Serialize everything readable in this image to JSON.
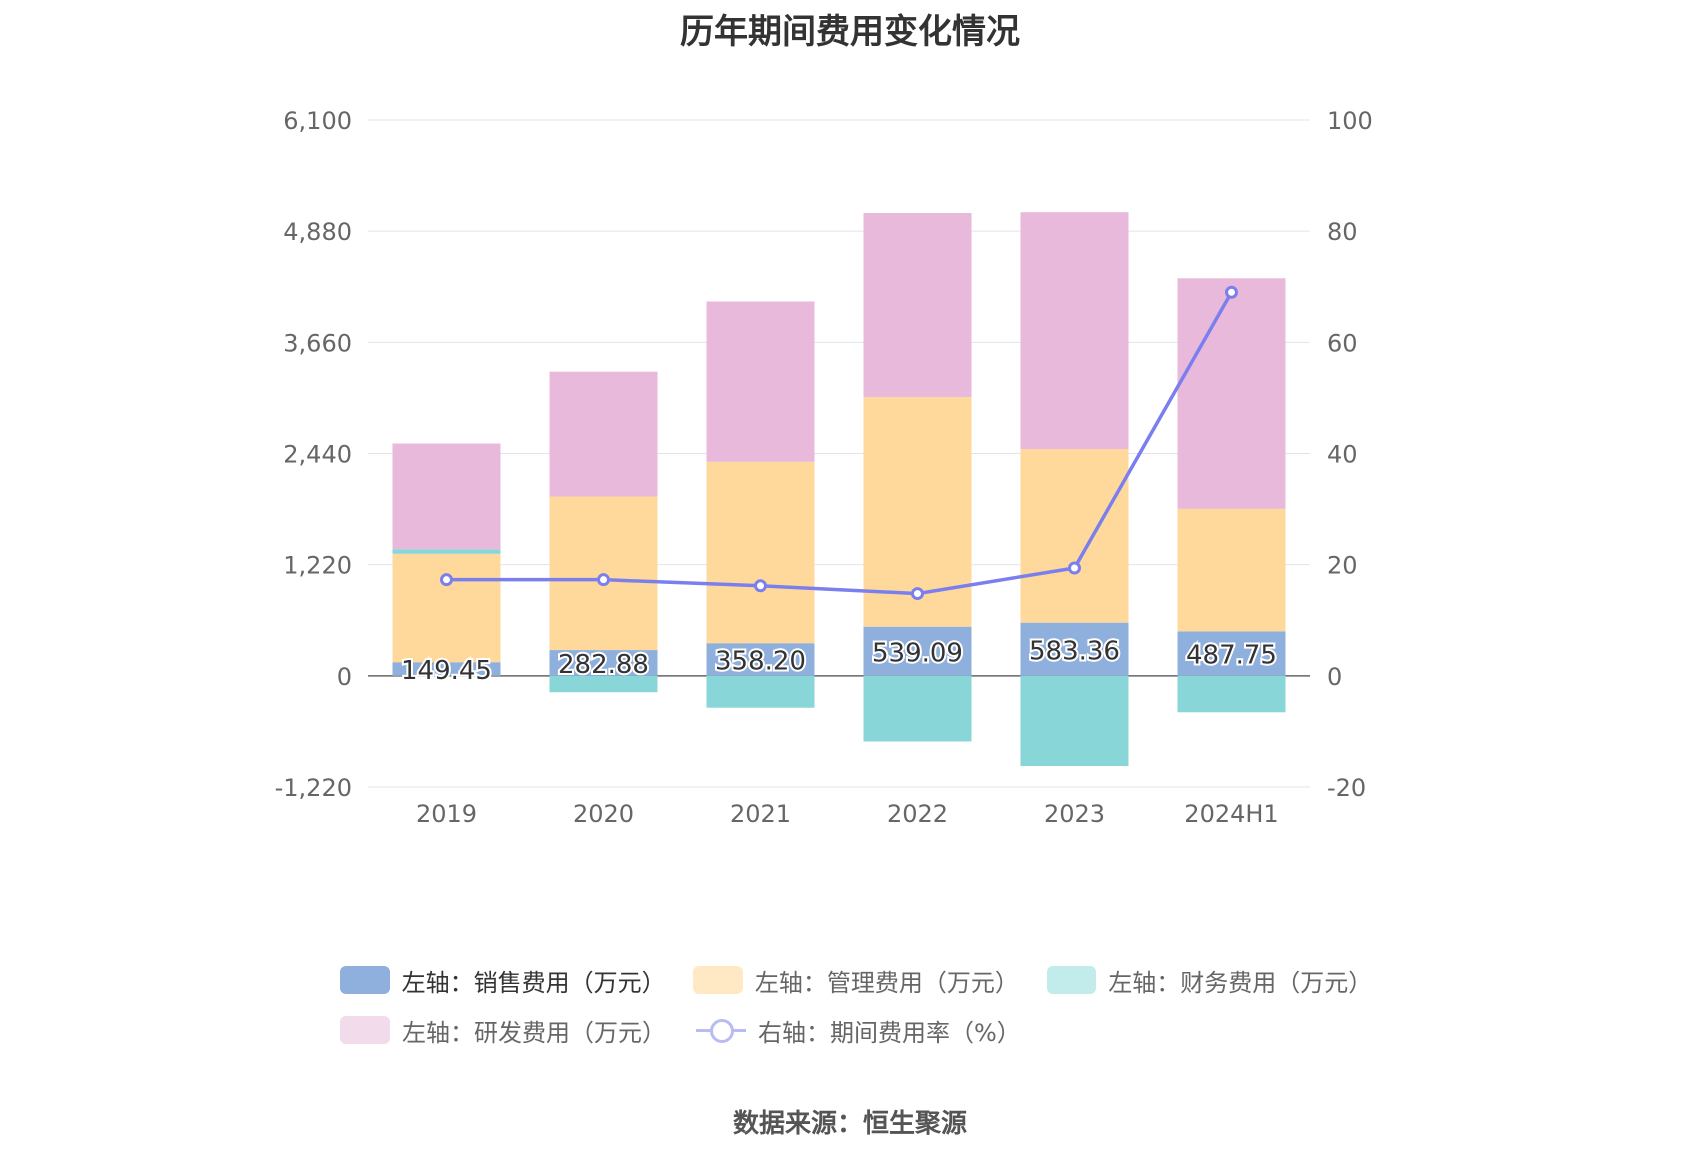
{
  "chart_data": {
    "type": "bar",
    "title": "历年期间费用变化情况",
    "categories": [
      "2019",
      "2020",
      "2021",
      "2022",
      "2023",
      "2024H1"
    ],
    "stacked": true,
    "y_left": {
      "min": -1220,
      "max": 6100,
      "ticks": [
        "-1,220",
        "0",
        "1,220",
        "2,440",
        "3,660",
        "4,880",
        "6,100"
      ],
      "tick_values": [
        -1220,
        0,
        1220,
        2440,
        3660,
        4880,
        6100
      ]
    },
    "y_right": {
      "min": -20,
      "max": 100,
      "ticks": [
        "-20",
        "0",
        "20",
        "40",
        "60",
        "80",
        "100"
      ],
      "tick_values": [
        -20,
        0,
        20,
        40,
        60,
        80,
        100
      ]
    },
    "series": [
      {
        "name": "左轴：销售费用（万元）",
        "axis": "left",
        "color": "#8fb0dd",
        "values": [
          149.45,
          282.88,
          358.2,
          539.09,
          583.36,
          487.75
        ],
        "labels": [
          "149.45",
          "282.88",
          "358.20",
          "539.09",
          "583.36",
          "487.75"
        ]
      },
      {
        "name": "左轴：管理费用（万元）",
        "axis": "left",
        "color": "#ffd99b",
        "values": [
          1190,
          1685,
          1990,
          2520,
          1905,
          1345
        ]
      },
      {
        "name": "左轴：财务费用（万元）",
        "axis": "left",
        "color": "#88d6d8",
        "values": [
          50,
          -180,
          -350,
          -720,
          -990,
          -400
        ]
      },
      {
        "name": "左轴：研发费用（万元）",
        "axis": "left",
        "color": "#e8b9da",
        "values": [
          1160,
          1370,
          1760,
          2020,
          2600,
          2530
        ]
      },
      {
        "name": "右轴：期间费用率（%）",
        "axis": "right",
        "type": "line",
        "color": "#7b7fee",
        "values": [
          17.3,
          17.3,
          16.2,
          14.8,
          19.4,
          69.0
        ]
      }
    ],
    "grid": true,
    "legend_position": "bottom"
  },
  "source": "数据来源：恒生聚源"
}
